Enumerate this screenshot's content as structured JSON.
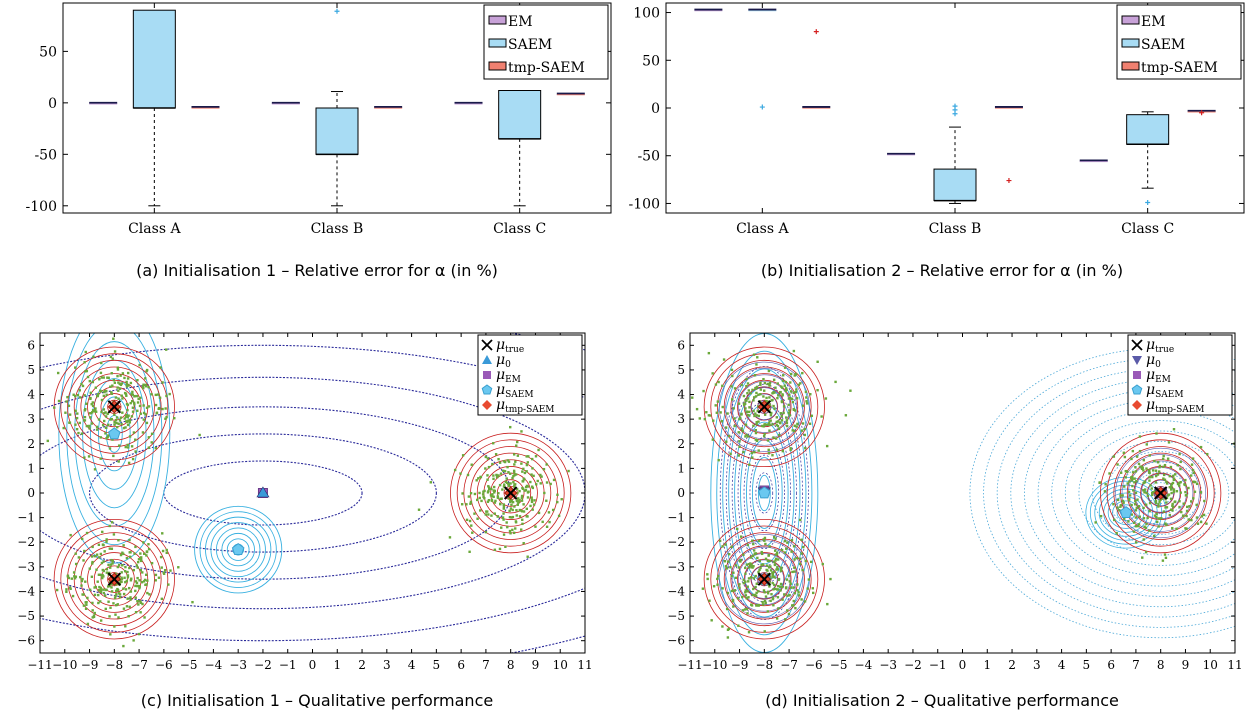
{
  "chart_data": [
    {
      "type": "box",
      "caption": "(a)  Initialisation 1 – Relative error for α (in %)",
      "categories": [
        "Class A",
        "Class B",
        "Class C"
      ],
      "ylim": [
        -107,
        97
      ],
      "yticks": [
        -100,
        -50,
        0,
        50
      ],
      "legend": {
        "position": "top-right",
        "entries": [
          "EM",
          "SAEM",
          "tmp-SAEM"
        ]
      },
      "colors": {
        "EM": "#c8a2d8",
        "SAEM": "#a8dcf4",
        "tmp-SAEM": "#f08070"
      },
      "boxes": [
        {
          "cat": "Class A",
          "series": "EM",
          "wl": 0,
          "q1": 0,
          "med": 0,
          "q3": 0,
          "wh": 0,
          "outliers": []
        },
        {
          "cat": "Class A",
          "series": "SAEM",
          "wl": -100,
          "q1": -5,
          "med": -5,
          "q3": 90,
          "wh": 90,
          "outliers": []
        },
        {
          "cat": "Class A",
          "series": "tmp-SAEM",
          "wl": -4,
          "q1": -4,
          "med": -4,
          "q3": -4,
          "wh": -4,
          "outliers": []
        },
        {
          "cat": "Class B",
          "series": "EM",
          "wl": 0,
          "q1": 0,
          "med": 0,
          "q3": 0,
          "wh": 0,
          "outliers": []
        },
        {
          "cat": "Class B",
          "series": "SAEM",
          "wl": -100,
          "q1": -50,
          "med": -50,
          "q3": -5,
          "wh": 11,
          "outliers": [
            89
          ]
        },
        {
          "cat": "Class B",
          "series": "tmp-SAEM",
          "wl": -4,
          "q1": -4,
          "med": -4,
          "q3": -4,
          "wh": -4,
          "outliers": []
        },
        {
          "cat": "Class C",
          "series": "EM",
          "wl": 0,
          "q1": 0,
          "med": 0,
          "q3": 0,
          "wh": 0,
          "outliers": []
        },
        {
          "cat": "Class C",
          "series": "SAEM",
          "wl": -100,
          "q1": -35,
          "med": -35,
          "q3": 12,
          "wh": 12,
          "outliers": []
        },
        {
          "cat": "Class C",
          "series": "tmp-SAEM",
          "wl": 9,
          "q1": 9,
          "med": 9,
          "q3": 9,
          "wh": 9,
          "outliers": []
        }
      ]
    },
    {
      "type": "box",
      "caption": "(b) Initialisation 2 – Relative error for α (in %)",
      "categories": [
        "Class A",
        "Class B",
        "Class C"
      ],
      "ylim": [
        -110,
        110
      ],
      "yticks": [
        -100,
        -50,
        0,
        50,
        100
      ],
      "legend": {
        "position": "top-right",
        "entries": [
          "EM",
          "SAEM",
          "tmp-SAEM"
        ]
      },
      "colors": {
        "EM": "#c8a2d8",
        "SAEM": "#a8dcf4",
        "tmp-SAEM": "#f08070"
      },
      "boxes": [
        {
          "cat": "Class A",
          "series": "EM",
          "wl": 103,
          "q1": 103,
          "med": 103,
          "q3": 103,
          "wh": 103,
          "outliers": []
        },
        {
          "cat": "Class A",
          "series": "SAEM",
          "wl": 103,
          "q1": 103,
          "med": 103,
          "q3": 103,
          "wh": 103,
          "outliers": [
            1
          ]
        },
        {
          "cat": "Class A",
          "series": "tmp-SAEM",
          "wl": 1,
          "q1": 1,
          "med": 1,
          "q3": 1,
          "wh": 1,
          "outliers": [
            80
          ]
        },
        {
          "cat": "Class B",
          "series": "EM",
          "wl": -48,
          "q1": -48,
          "med": -48,
          "q3": -48,
          "wh": -48,
          "outliers": []
        },
        {
          "cat": "Class B",
          "series": "SAEM",
          "wl": -100,
          "q1": -97,
          "med": -97,
          "q3": -64,
          "wh": -20,
          "outliers": [
            2,
            -2,
            -6
          ]
        },
        {
          "cat": "Class B",
          "series": "tmp-SAEM",
          "wl": 1,
          "q1": 1,
          "med": 1,
          "q3": 1,
          "wh": 1,
          "outliers": [
            -76
          ]
        },
        {
          "cat": "Class C",
          "series": "EM",
          "wl": -55,
          "q1": -55,
          "med": -55,
          "q3": -55,
          "wh": -55,
          "outliers": []
        },
        {
          "cat": "Class C",
          "series": "SAEM",
          "wl": -84,
          "q1": -38,
          "med": -38,
          "q3": -7,
          "wh": -4,
          "outliers": [
            -99
          ]
        },
        {
          "cat": "Class C",
          "series": "tmp-SAEM",
          "wl": -3,
          "q1": -3,
          "med": -3,
          "q3": -3,
          "wh": -3,
          "outliers": [
            -5
          ]
        }
      ]
    },
    {
      "type": "scatter",
      "caption": "(c)  Initialisation 1 – Qualitative performance",
      "xlim": [
        -11,
        11
      ],
      "ylim": [
        -6.5,
        6.5
      ],
      "xticks": [
        -11,
        -10,
        -9,
        -8,
        -7,
        -6,
        -5,
        -4,
        -3,
        -2,
        -1,
        0,
        1,
        2,
        3,
        4,
        5,
        6,
        7,
        8,
        9,
        10,
        11
      ],
      "yticks": [
        -6,
        -5,
        -4,
        -3,
        -2,
        -1,
        0,
        1,
        2,
        3,
        4,
        5,
        6
      ],
      "clusters": [
        [
          -8,
          3.5
        ],
        [
          -8,
          -3.5
        ],
        [
          8,
          0
        ]
      ],
      "markers": {
        "true": [
          [
            -8,
            3.5
          ],
          [
            -8,
            -3.5
          ],
          [
            8,
            0
          ]
        ],
        "init": [
          [
            -2,
            0
          ]
        ],
        "em": [
          [
            -2,
            0
          ]
        ],
        "saem": [
          [
            -8,
            2.4
          ],
          [
            -3,
            -2.3
          ]
        ],
        "tmp": [
          [
            -8,
            3.5
          ],
          [
            -8,
            -3.5
          ],
          [
            8,
            0
          ]
        ]
      },
      "init_marker": "triangle-up",
      "legend": {
        "position": "top-right",
        "entries": [
          "μ",
          "μ",
          "μ",
          "μ",
          "μ"
        ],
        "subs": [
          "true",
          "0",
          "EM",
          "SAEM",
          "tmp-SAEM"
        ]
      }
    },
    {
      "type": "scatter",
      "caption": "(d) Initialisation 2 – Qualitative performance",
      "xlim": [
        -11,
        11
      ],
      "ylim": [
        -6.5,
        6.5
      ],
      "xticks": [
        -11,
        -10,
        -9,
        -8,
        -7,
        -6,
        -5,
        -4,
        -3,
        -2,
        -1,
        0,
        1,
        2,
        3,
        4,
        5,
        6,
        7,
        8,
        9,
        10,
        11
      ],
      "yticks": [
        -6,
        -5,
        -4,
        -3,
        -2,
        -1,
        0,
        1,
        2,
        3,
        4,
        5,
        6
      ],
      "clusters": [
        [
          -8,
          3.5
        ],
        [
          -8,
          -3.5
        ],
        [
          8,
          0
        ]
      ],
      "markers": {
        "true": [
          [
            -8,
            3.5
          ],
          [
            -8,
            -3.5
          ],
          [
            8,
            0
          ]
        ],
        "init": [
          [
            -8,
            0.05
          ],
          [
            -8,
            -3.5
          ],
          [
            8,
            0
          ]
        ],
        "em": [
          [
            -8,
            0.1
          ],
          [
            -8,
            -3.5
          ],
          [
            8,
            0
          ]
        ],
        "saem": [
          [
            -8,
            0
          ],
          [
            -8,
            -3.5
          ],
          [
            6.6,
            -0.8
          ]
        ],
        "tmp": [
          [
            -8,
            3.5
          ],
          [
            -8,
            -3.5
          ],
          [
            8,
            0
          ]
        ]
      },
      "init_marker": "triangle-down",
      "legend": {
        "position": "top-right",
        "entries": [
          "μ",
          "μ",
          "μ",
          "μ",
          "μ"
        ],
        "subs": [
          "true",
          "0",
          "EM",
          "SAEM",
          "tmp-SAEM"
        ]
      }
    }
  ]
}
